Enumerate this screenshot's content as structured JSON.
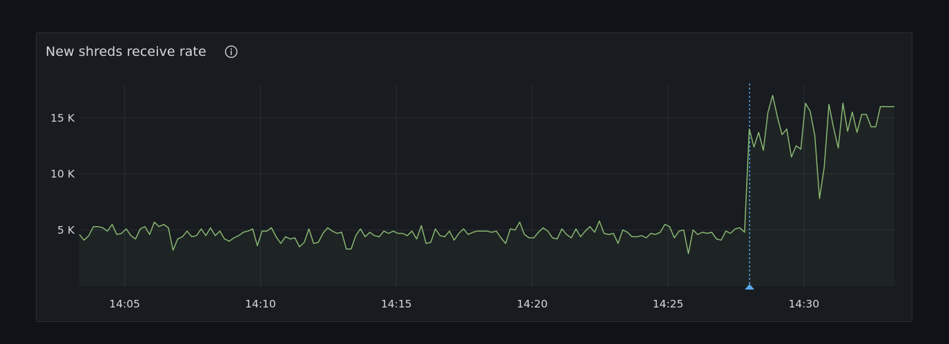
{
  "panel": {
    "title": "New shreds receive rate",
    "info_icon": "info-icon"
  },
  "colors": {
    "background": "#111217",
    "panel_bg": "#181b1f",
    "line": "#8ab873",
    "annotation": "#5aa9ee",
    "grid": "#2a2d33",
    "text": "#d5d8de"
  },
  "chart_data": {
    "type": "area",
    "xlabel": "",
    "ylabel": "",
    "x_ticks": [
      "14:05",
      "14:10",
      "14:15",
      "14:20",
      "14:25",
      "14:30"
    ],
    "y_ticks": [
      5000,
      10000,
      15000
    ],
    "y_tick_labels": [
      "5 K",
      "10 K",
      "15 K"
    ],
    "ylim": [
      0,
      18000
    ],
    "x_range": [
      "14:03:20",
      "14:33:20"
    ],
    "annotation_time": "14:28:00",
    "series": [
      {
        "x_start": "14:03:20",
        "x_end": "14:33:20",
        "values": [
          4600,
          4100,
          4500,
          5300,
          5300,
          5200,
          4900,
          5500,
          4600,
          4700,
          5100,
          4500,
          4200,
          5100,
          5300,
          4600,
          5700,
          5300,
          5500,
          5200,
          3200,
          4200,
          4400,
          4900,
          4400,
          4500,
          5100,
          4500,
          5200,
          4500,
          4900,
          4200,
          4000,
          4300,
          4500,
          4800,
          4900,
          5100,
          3600,
          4900,
          4900,
          5200,
          4400,
          3800,
          4400,
          4200,
          4300,
          3500,
          3900,
          5100,
          3800,
          3900,
          4700,
          5200,
          4900,
          4700,
          4800,
          3300,
          3300,
          4500,
          5100,
          4400,
          4800,
          4500,
          4400,
          4900,
          4700,
          4900,
          4700,
          4700,
          4500,
          4900,
          4200,
          5400,
          3800,
          3900,
          5100,
          4500,
          4400,
          4900,
          4100,
          4700,
          5100,
          4600,
          4800,
          4900,
          4900,
          4900,
          4800,
          4900,
          4300,
          3800,
          5100,
          5000,
          5700,
          4600,
          4300,
          4300,
          4800,
          5200,
          4900,
          4300,
          4200,
          5100,
          4600,
          4300,
          5100,
          4400,
          4900,
          5300,
          4800,
          5800,
          4700,
          4600,
          4700,
          3800,
          5000,
          4800,
          4400,
          4400,
          4500,
          4300,
          4700,
          4600,
          4800,
          5500,
          5300,
          4300,
          4900,
          5000,
          2900,
          5000,
          4600,
          4800,
          4700,
          4800,
          4200,
          4100,
          4900,
          4700,
          5100,
          5200,
          4800,
          14000,
          12400,
          13700,
          12100,
          15500,
          17000,
          15100,
          13500,
          14000,
          11500,
          12500,
          12200,
          16300,
          15600,
          13400,
          7800,
          10600,
          16200,
          14100,
          12300,
          16300,
          13800,
          15500,
          13700,
          15300,
          15300,
          14200,
          14200,
          16000,
          16000,
          16000,
          16000
        ]
      }
    ]
  }
}
